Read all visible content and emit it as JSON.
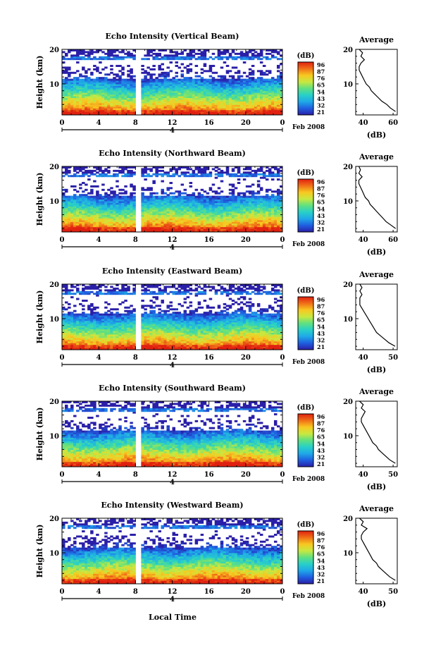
{
  "figure": {
    "bottom_xlabel": "Local Time",
    "date_label": "Feb 2008",
    "day_label": "4"
  },
  "colorbar": {
    "unit": "(dB)",
    "ticks": [
      "96",
      "87",
      "76",
      "65",
      "54",
      "43",
      "32",
      "21"
    ],
    "colors": [
      "#2a1fa8",
      "#1f5fe0",
      "#1fa8e8",
      "#28d0c8",
      "#60e080",
      "#c8e840",
      "#f8c820",
      "#f07018",
      "#e02010"
    ]
  },
  "chart_data": [
    {
      "type": "heatmap",
      "title": "Echo Intensity (Vertical Beam)",
      "ylabel": "Height (km)",
      "xticks": [
        "0",
        "4",
        "8",
        "12",
        "16",
        "20",
        "0"
      ],
      "yticks": [
        "20",
        "10"
      ],
      "xlim": [
        0,
        24
      ],
      "ylim": [
        1,
        20
      ],
      "gap_hours": [
        7.9,
        8.7
      ],
      "average_profile": {
        "title": "Average",
        "xlabel": "(dB)",
        "xticks": [
          "40",
          "60"
        ],
        "yticks": [
          "20",
          "10"
        ],
        "height_km": [
          2,
          3,
          4,
          5,
          6,
          7,
          8,
          9,
          10,
          11,
          12,
          13,
          14,
          15,
          16,
          17,
          18,
          19,
          20
        ],
        "db": [
          59,
          56,
          54,
          51,
          49,
          47,
          45,
          44,
          42,
          41,
          40,
          39,
          38,
          38,
          39,
          41,
          39,
          40,
          38
        ]
      }
    },
    {
      "type": "heatmap",
      "title": "Echo Intensity (Northward Beam)",
      "ylabel": "Height (km)",
      "xticks": [
        "0",
        "4",
        "8",
        "12",
        "16",
        "20",
        "0"
      ],
      "yticks": [
        "20",
        "10"
      ],
      "xlim": [
        0,
        24
      ],
      "ylim": [
        1,
        20
      ],
      "gap_hours": [
        7.9,
        8.7
      ],
      "average_profile": {
        "title": "Average",
        "xlabel": "(dB)",
        "xticks": [
          "40",
          "60"
        ],
        "yticks": [
          "20",
          "10"
        ],
        "height_km": [
          2,
          3,
          4,
          5,
          6,
          7,
          8,
          9,
          10,
          11,
          12,
          13,
          14,
          15,
          16,
          17,
          18,
          19,
          20
        ],
        "db": [
          56,
          53,
          50,
          48,
          46,
          44,
          42,
          40,
          39,
          37,
          36,
          35,
          34,
          33,
          33,
          35,
          33,
          34,
          33
        ]
      }
    },
    {
      "type": "heatmap",
      "title": "Echo Intensity (Eastward Beam)",
      "ylabel": "Height (km)",
      "xticks": [
        "0",
        "4",
        "8",
        "12",
        "16",
        "20",
        "0"
      ],
      "yticks": [
        "20",
        "10"
      ],
      "xlim": [
        0,
        24
      ],
      "ylim": [
        1,
        20
      ],
      "gap_hours": [
        7.9,
        8.7
      ],
      "average_profile": {
        "title": "Average",
        "xlabel": "(dB)",
        "xticks": [
          "40",
          "50"
        ],
        "yticks": [
          "20",
          "10"
        ],
        "height_km": [
          2,
          3,
          4,
          5,
          6,
          7,
          8,
          9,
          10,
          11,
          12,
          13,
          14,
          15,
          16,
          17,
          18,
          19,
          20
        ],
        "db": [
          50,
          47,
          45,
          43,
          41,
          40,
          39,
          38,
          37,
          36,
          35,
          34,
          33,
          33,
          33,
          34,
          33,
          34,
          33
        ]
      }
    },
    {
      "type": "heatmap",
      "title": "Echo Intensity (Southward Beam)",
      "ylabel": "Height (km)",
      "xticks": [
        "0",
        "4",
        "8",
        "12",
        "16",
        "20",
        "0"
      ],
      "yticks": [
        "20",
        "10"
      ],
      "xlim": [
        0,
        24
      ],
      "ylim": [
        1,
        20
      ],
      "gap_hours": [
        7.9,
        8.7
      ],
      "average_profile": {
        "title": "Average",
        "xlabel": "(dB)",
        "xticks": [
          "40",
          "50"
        ],
        "yticks": [
          "20",
          "10"
        ],
        "height_km": [
          2,
          3,
          4,
          5,
          6,
          7,
          8,
          9,
          10,
          11,
          12,
          13,
          14,
          15,
          16,
          17,
          18,
          19,
          20
        ],
        "db": [
          52,
          49,
          47,
          45,
          43,
          42,
          40,
          39,
          38,
          37,
          36,
          35,
          34,
          34,
          35,
          36,
          34,
          35,
          33
        ]
      }
    },
    {
      "type": "heatmap",
      "title": "Echo Intensity (Westward Beam)",
      "ylabel": "Height (km)",
      "xticks": [
        "0",
        "4",
        "8",
        "12",
        "16",
        "20",
        "0"
      ],
      "yticks": [
        "20",
        "10"
      ],
      "xlim": [
        0,
        24
      ],
      "ylim": [
        1,
        20
      ],
      "gap_hours": [
        7.9,
        8.7
      ],
      "average_profile": {
        "title": "Average",
        "xlabel": "(dB)",
        "xticks": [
          "40",
          "50"
        ],
        "yticks": [
          "20",
          "10"
        ],
        "height_km": [
          2,
          3,
          4,
          5,
          6,
          7,
          8,
          9,
          10,
          11,
          12,
          13,
          14,
          15,
          16,
          17,
          18,
          19,
          20
        ],
        "db": [
          52,
          49,
          47,
          45,
          43,
          42,
          40,
          39,
          38,
          37,
          36,
          35,
          34,
          34,
          35,
          37,
          34,
          35,
          33
        ]
      }
    }
  ]
}
